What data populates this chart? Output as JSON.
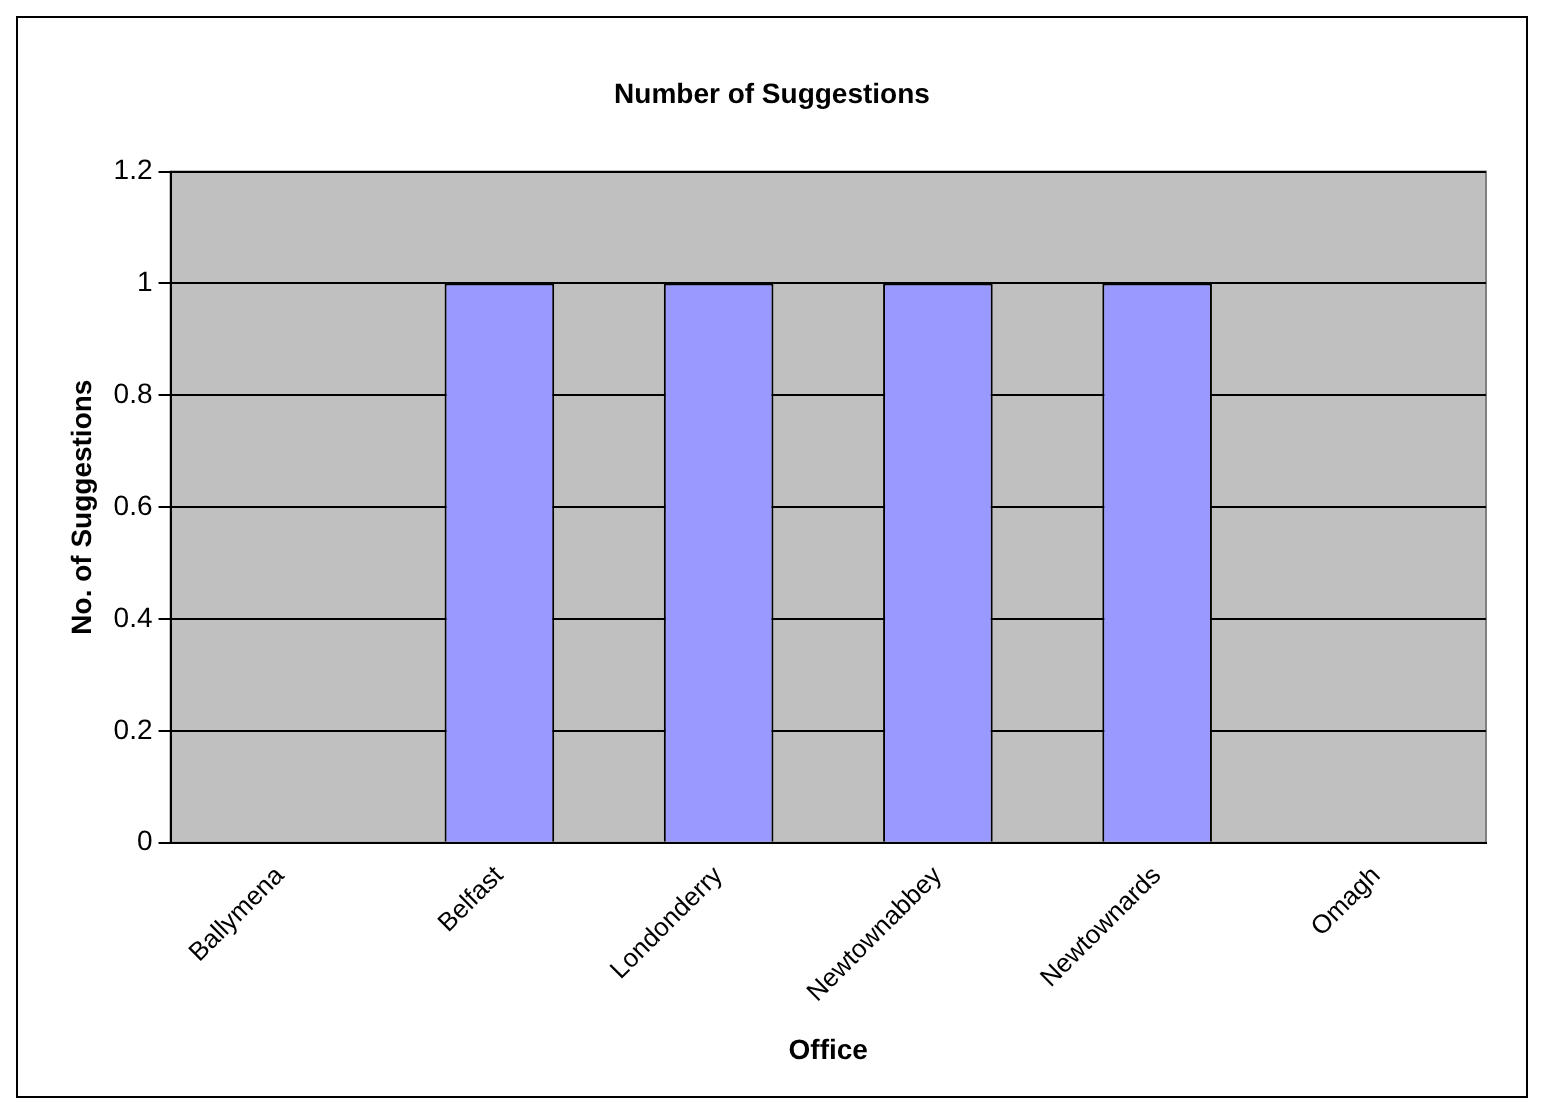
{
  "chart_data": {
    "type": "bar",
    "title": "Number of Suggestions",
    "xlabel": "Office",
    "ylabel": "No. of Suggestions",
    "categories": [
      "Ballymena",
      "Belfast",
      "Londonderry",
      "Newtownabbey",
      "Newtownards",
      "Omagh"
    ],
    "values": [
      0,
      1,
      1,
      1,
      1,
      0
    ],
    "color": "#9999ff",
    "ylim": [
      0,
      1.2
    ],
    "yticks": [
      0,
      0.2,
      0.4,
      0.6,
      0.8,
      1,
      1.2
    ],
    "grid": "y",
    "legend": false
  }
}
